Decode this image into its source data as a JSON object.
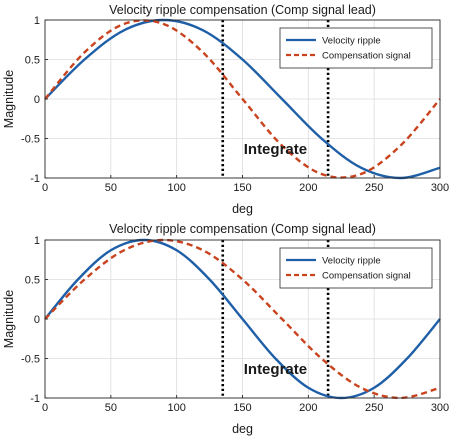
{
  "colors": {
    "series1": "#1f5fa8",
    "series2": "#c8431e",
    "grid": "#dcdcdc",
    "axis": "#262626",
    "marker": "#000000"
  },
  "chart_data": [
    {
      "type": "line",
      "title": "Velocity ripple compensation (Comp signal lead)",
      "xlabel": "deg",
      "ylabel": "Magnitude",
      "xlim": [
        0,
        300
      ],
      "ylim": [
        -1,
        1
      ],
      "xticks": [
        0,
        50,
        100,
        150,
        200,
        250,
        300
      ],
      "yticks": [
        -1,
        -0.5,
        0,
        0.5,
        1
      ],
      "xtick_labels": [
        "0",
        "50",
        "100",
        "150",
        "200",
        "250",
        "300"
      ],
      "ytick_labels": [
        "-1",
        "-0.5",
        "0",
        "0.5",
        "1"
      ],
      "grid": true,
      "legend_position": "top-right",
      "series": [
        {
          "name": "Velocity ripple",
          "style": "solid",
          "x": [
            0,
            30,
            60,
            90,
            120,
            150,
            180,
            210,
            240,
            270,
            300
          ],
          "y": [
            0,
            0.5,
            0.87,
            1,
            0.87,
            0.5,
            0,
            -0.5,
            -0.87,
            -1,
            -0.87
          ]
        },
        {
          "name": "Compensation signal",
          "style": "dashed",
          "x": [
            0,
            30,
            60,
            90,
            120,
            150,
            180,
            210,
            240,
            270,
            300
          ],
          "y": [
            0,
            0.59,
            0.95,
            0.95,
            0.59,
            0,
            -0.59,
            -0.95,
            -0.95,
            -0.59,
            0
          ]
        }
      ],
      "vertical_markers": [
        135,
        215
      ],
      "annotation": {
        "text": "Integrate",
        "x": 175,
        "y": -0.63
      }
    },
    {
      "type": "line",
      "title": "Velocity ripple compensation (Comp signal lead)",
      "xlabel": "deg",
      "ylabel": "Magnitude",
      "xlim": [
        0,
        300
      ],
      "ylim": [
        -1,
        1
      ],
      "xticks": [
        0,
        50,
        100,
        150,
        200,
        250,
        300
      ],
      "yticks": [
        -1,
        -0.5,
        0,
        0.5,
        1
      ],
      "xtick_labels": [
        "0",
        "50",
        "100",
        "150",
        "200",
        "250",
        "300"
      ],
      "ytick_labels": [
        "-1",
        "-0.5",
        "0",
        "0.5",
        "1"
      ],
      "grid": true,
      "legend_position": "top-right",
      "series": [
        {
          "name": "Velocity ripple",
          "style": "solid",
          "x": [
            0,
            25,
            50,
            75,
            100,
            125,
            150,
            175,
            200,
            225,
            250,
            275,
            300
          ],
          "y": [
            0,
            0.5,
            0.87,
            1,
            0.87,
            0.5,
            0,
            -0.5,
            -0.87,
            -1,
            -0.87,
            -0.5,
            0
          ]
        },
        {
          "name": "Compensation signal",
          "style": "dashed",
          "x": [
            0,
            30,
            60,
            90,
            120,
            150,
            180,
            210,
            240,
            270,
            300
          ],
          "y": [
            0,
            0.5,
            0.87,
            1,
            0.87,
            0.5,
            0,
            -0.5,
            -0.87,
            -1,
            -0.87
          ]
        }
      ],
      "vertical_markers": [
        135,
        215
      ],
      "annotation": {
        "text": "Integrate",
        "x": 175,
        "y": -0.63
      }
    }
  ]
}
